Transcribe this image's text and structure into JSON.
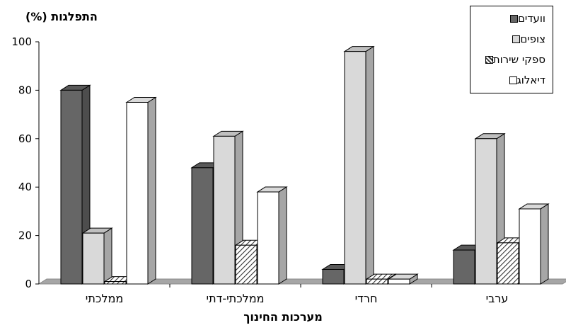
{
  "chart_data": {
    "type": "bar",
    "title": "",
    "ylabel": "התפלגות (%)",
    "xlabel": "מערכות החינוך",
    "ylim": [
      0,
      100
    ],
    "yticks": [
      0,
      20,
      40,
      60,
      80,
      100
    ],
    "categories": [
      "ממלכתי",
      "ממלכתי-דתי",
      "חרדי",
      "ערבי"
    ],
    "series": [
      {
        "name": "וועדים",
        "values": [
          80,
          48,
          6,
          14
        ],
        "color": "#666666",
        "pattern": "solid"
      },
      {
        "name": "צופים",
        "values": [
          21,
          61,
          96,
          60
        ],
        "color": "#d9d9d9",
        "pattern": "solid"
      },
      {
        "name": "ספקי שירות",
        "values": [
          1,
          16,
          2,
          17
        ],
        "color": "#ffffff",
        "pattern": "hatch"
      },
      {
        "name": "דיאלוג",
        "values": [
          75,
          38,
          2,
          31
        ],
        "color": "#ffffff",
        "pattern": "solid"
      }
    ],
    "legend_position": "top-right",
    "grid": false,
    "style": "3d"
  }
}
